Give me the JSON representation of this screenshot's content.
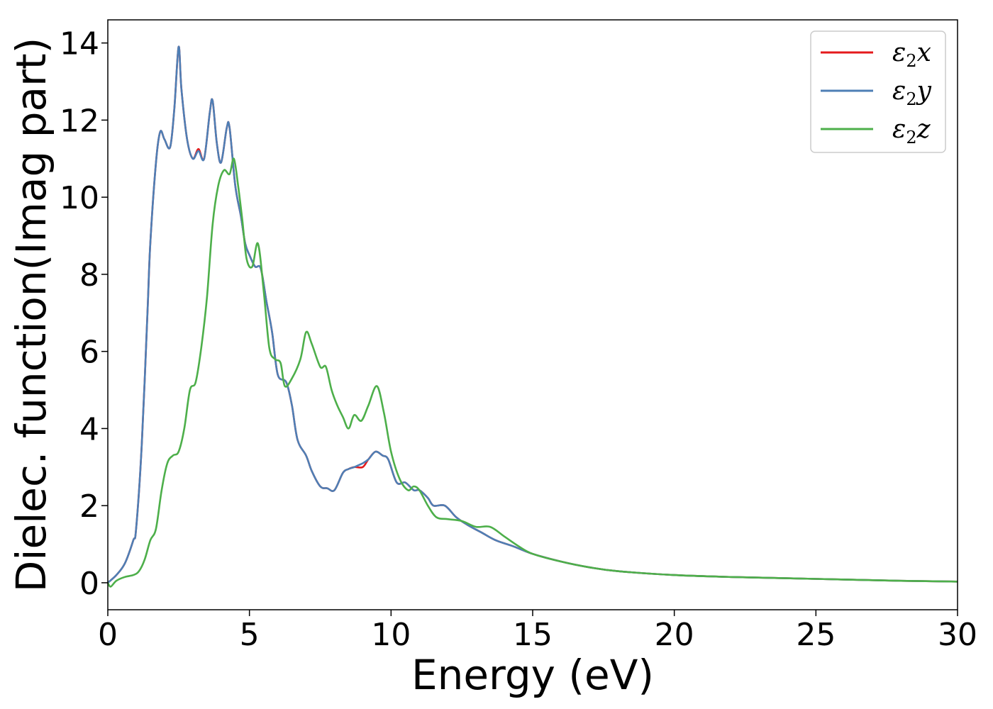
{
  "chart_data": {
    "type": "line",
    "title": "",
    "xlabel": "Energy (eV)",
    "ylabel": "Dielec. function(Imag part)",
    "xlim": [
      0,
      30
    ],
    "ylim": [
      -0.7,
      14.6
    ],
    "xticks": [
      0,
      5,
      10,
      15,
      20,
      25,
      30
    ],
    "xtick_labels": [
      "0",
      "5",
      "10",
      "15",
      "20",
      "25",
      "30"
    ],
    "yticks": [
      0,
      2,
      4,
      6,
      8,
      10,
      12,
      14
    ],
    "ytick_labels": [
      "0",
      "2",
      "4",
      "6",
      "8",
      "10",
      "12",
      "14"
    ],
    "grid": false,
    "legend_position": "top-right",
    "series": [
      {
        "name": "ε2x",
        "legend_base": "ε",
        "legend_sub": "2",
        "legend_var": "x",
        "color": "#e41a1c",
        "x": [
          0,
          0.3,
          0.6,
          0.9,
          1.0,
          1.2,
          1.4,
          1.5,
          1.7,
          1.85,
          2.0,
          2.2,
          2.35,
          2.5,
          2.6,
          2.8,
          3.0,
          3.2,
          3.4,
          3.6,
          3.7,
          3.85,
          4.0,
          4.2,
          4.3,
          4.5,
          4.7,
          4.85,
          5.0,
          5.2,
          5.4,
          5.6,
          5.8,
          6.0,
          6.3,
          6.5,
          6.7,
          7.0,
          7.2,
          7.5,
          7.75,
          8.0,
          8.3,
          8.5,
          8.7,
          9.0,
          9.2,
          9.45,
          9.7,
          9.9,
          10.2,
          10.5,
          10.8,
          11.0,
          11.3,
          11.5,
          11.9,
          12.3,
          12.7,
          13.2,
          13.7,
          14.3,
          15.0,
          16.0,
          17.0,
          18.0,
          20.0,
          22.0,
          25.0,
          28.0,
          30.0
        ],
        "y": [
          0.0,
          0.2,
          0.5,
          1.1,
          1.4,
          3.6,
          7.0,
          8.8,
          10.9,
          11.7,
          11.5,
          11.3,
          12.3,
          13.9,
          12.8,
          11.5,
          11.0,
          11.25,
          11.0,
          12.2,
          12.5,
          11.4,
          10.9,
          11.8,
          11.8,
          10.3,
          9.5,
          8.8,
          8.5,
          8.2,
          8.15,
          7.3,
          6.5,
          5.4,
          5.2,
          4.6,
          3.7,
          3.3,
          2.9,
          2.5,
          2.45,
          2.4,
          2.85,
          2.95,
          3.0,
          3.0,
          3.2,
          3.4,
          3.3,
          3.2,
          2.6,
          2.6,
          2.4,
          2.4,
          2.2,
          2.0,
          2.0,
          1.7,
          1.5,
          1.3,
          1.1,
          0.95,
          0.75,
          0.55,
          0.4,
          0.3,
          0.2,
          0.15,
          0.1,
          0.05,
          0.03
        ]
      },
      {
        "name": "ε2y",
        "legend_base": "ε",
        "legend_sub": "2",
        "legend_var": "y",
        "color": "#4e7fb5",
        "x": [
          0,
          0.3,
          0.6,
          0.9,
          1.0,
          1.2,
          1.4,
          1.5,
          1.7,
          1.85,
          2.0,
          2.2,
          2.35,
          2.5,
          2.6,
          2.8,
          3.0,
          3.2,
          3.4,
          3.6,
          3.7,
          3.85,
          4.0,
          4.2,
          4.3,
          4.5,
          4.7,
          4.85,
          5.0,
          5.2,
          5.4,
          5.6,
          5.8,
          6.0,
          6.3,
          6.5,
          6.7,
          7.0,
          7.2,
          7.5,
          7.75,
          8.0,
          8.3,
          8.5,
          8.7,
          9.0,
          9.2,
          9.45,
          9.7,
          9.9,
          10.2,
          10.5,
          10.8,
          11.0,
          11.3,
          11.5,
          11.9,
          12.3,
          12.7,
          13.2,
          13.7,
          14.3,
          15.0,
          16.0,
          17.0,
          18.0,
          20.0,
          22.0,
          25.0,
          28.0,
          30.0
        ],
        "y": [
          0.0,
          0.2,
          0.5,
          1.1,
          1.4,
          3.6,
          7.0,
          8.8,
          10.9,
          11.7,
          11.5,
          11.3,
          12.3,
          13.9,
          12.8,
          11.5,
          11.0,
          11.2,
          11.0,
          12.2,
          12.5,
          11.4,
          10.9,
          11.8,
          11.8,
          10.3,
          9.5,
          8.8,
          8.5,
          8.2,
          8.15,
          7.3,
          6.5,
          5.4,
          5.2,
          4.6,
          3.7,
          3.3,
          2.9,
          2.5,
          2.45,
          2.4,
          2.85,
          2.95,
          3.0,
          3.1,
          3.2,
          3.4,
          3.3,
          3.2,
          2.6,
          2.6,
          2.4,
          2.4,
          2.2,
          2.0,
          2.0,
          1.7,
          1.5,
          1.3,
          1.1,
          0.95,
          0.75,
          0.55,
          0.4,
          0.3,
          0.2,
          0.15,
          0.1,
          0.05,
          0.03
        ]
      },
      {
        "name": "ε2z",
        "legend_base": "ε",
        "legend_sub": "2",
        "legend_var": "z",
        "color": "#4daf4a",
        "x": [
          0,
          0.1,
          0.3,
          0.6,
          0.9,
          1.1,
          1.3,
          1.5,
          1.7,
          1.9,
          2.1,
          2.3,
          2.5,
          2.7,
          2.9,
          3.1,
          3.3,
          3.5,
          3.7,
          3.9,
          4.1,
          4.3,
          4.45,
          4.6,
          4.75,
          4.9,
          5.1,
          5.3,
          5.5,
          5.7,
          5.9,
          6.1,
          6.25,
          6.5,
          6.8,
          7.0,
          7.2,
          7.5,
          7.7,
          7.9,
          8.1,
          8.3,
          8.5,
          8.7,
          8.95,
          9.2,
          9.5,
          9.75,
          10.0,
          10.3,
          10.6,
          10.8,
          11.0,
          11.3,
          11.6,
          12.0,
          12.5,
          13.0,
          13.5,
          14.0,
          14.5,
          15.0,
          16.0,
          17.0,
          18.0,
          20.0,
          22.0,
          25.0,
          28.0,
          30.0
        ],
        "y": [
          0.0,
          -0.1,
          0.05,
          0.15,
          0.2,
          0.3,
          0.6,
          1.1,
          1.4,
          2.4,
          3.1,
          3.3,
          3.4,
          4.0,
          5.0,
          5.2,
          6.1,
          7.4,
          9.3,
          10.3,
          10.7,
          10.6,
          11.0,
          10.3,
          9.4,
          8.4,
          8.2,
          8.8,
          7.6,
          6.1,
          5.8,
          5.7,
          5.1,
          5.3,
          5.8,
          6.5,
          6.2,
          5.6,
          5.6,
          5.0,
          4.6,
          4.3,
          4.0,
          4.35,
          4.2,
          4.6,
          5.1,
          4.4,
          3.4,
          2.7,
          2.4,
          2.5,
          2.4,
          2.0,
          1.7,
          1.65,
          1.6,
          1.45,
          1.45,
          1.2,
          0.95,
          0.75,
          0.55,
          0.4,
          0.3,
          0.2,
          0.15,
          0.1,
          0.05,
          0.03
        ]
      }
    ]
  }
}
